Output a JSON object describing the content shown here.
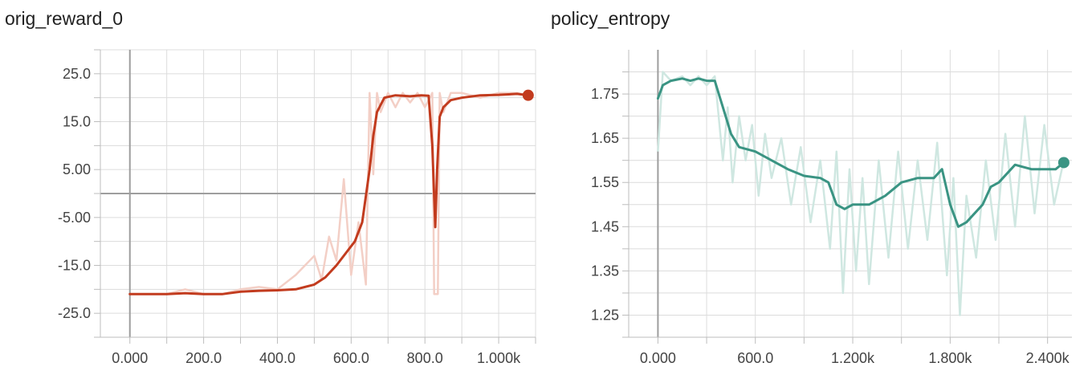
{
  "charts": [
    {
      "title": "orig_reward_0",
      "color": "#c23b1e",
      "raw_color": "#f3cfc6",
      "x_ticks": [
        "0.000",
        "200.0",
        "400.0",
        "600.0",
        "800.0",
        "1.000k"
      ],
      "y_ticks": [
        "25.0",
        "15.0",
        "5.00",
        "-5.00",
        "-15.0",
        "-25.0"
      ]
    },
    {
      "title": "policy_entropy",
      "color": "#3a9483",
      "raw_color": "#cfe7e1",
      "x_ticks": [
        "0.000",
        "600.0",
        "1.200k",
        "1.800k",
        "2.400k"
      ],
      "y_ticks": [
        "1.75",
        "1.65",
        "1.55",
        "1.45",
        "1.35",
        "1.25"
      ]
    }
  ],
  "chart_data": [
    {
      "type": "line",
      "title": "orig_reward_0",
      "xlabel": "",
      "ylabel": "",
      "xlim": [
        -80,
        1100
      ],
      "ylim": [
        -30,
        30
      ],
      "x_ticks": [
        0,
        200,
        400,
        600,
        800,
        1000
      ],
      "y_ticks": [
        25,
        15,
        5,
        -5,
        -15,
        -25
      ],
      "grid": true,
      "series": [
        {
          "smoothed": true,
          "x": [
            0,
            50,
            100,
            150,
            200,
            250,
            300,
            350,
            400,
            450,
            500,
            530,
            560,
            590,
            610,
            630,
            650,
            660,
            670,
            690,
            720,
            760,
            790,
            810,
            820,
            828,
            833,
            840,
            850,
            870,
            900,
            950,
            1000,
            1050,
            1080
          ],
          "y": [
            -21,
            -21,
            -21,
            -20.8,
            -21,
            -21,
            -20.5,
            -20.3,
            -20.2,
            -20,
            -19,
            -17.5,
            -15,
            -12,
            -10,
            -6,
            5,
            12,
            17,
            20,
            20.5,
            20.3,
            20.5,
            20.4,
            10,
            -7,
            5,
            16,
            18,
            19.5,
            20,
            20.5,
            20.6,
            20.8,
            20.5
          ]
        },
        {
          "raw": true,
          "x": [
            0,
            50,
            100,
            150,
            200,
            250,
            300,
            350,
            400,
            450,
            500,
            520,
            540,
            560,
            580,
            600,
            620,
            640,
            650,
            660,
            670,
            680,
            700,
            720,
            740,
            760,
            780,
            800,
            820,
            825,
            830,
            835,
            840,
            850,
            870,
            900,
            950,
            1000,
            1050,
            1080
          ],
          "y": [
            -21,
            -21,
            -21,
            -20,
            -21,
            -21,
            -20,
            -19.5,
            -20,
            -17,
            -13,
            -18,
            -9,
            -14,
            3,
            -17,
            -6,
            -19,
            21,
            4,
            21,
            17,
            21,
            18,
            21,
            19,
            21,
            18,
            21,
            -21,
            -21,
            -21,
            21,
            17,
            21,
            21,
            20,
            21,
            21,
            20.5
          ]
        }
      ]
    },
    {
      "type": "line",
      "title": "policy_entropy",
      "xlabel": "",
      "ylabel": "",
      "xlim": [
        -180,
        2550
      ],
      "ylim": [
        1.2,
        1.85
      ],
      "x_ticks": [
        0,
        600,
        1200,
        1800,
        2400
      ],
      "y_ticks": [
        1.75,
        1.65,
        1.55,
        1.45,
        1.35,
        1.25
      ],
      "grid": true,
      "series": [
        {
          "smoothed": true,
          "x": [
            0,
            30,
            80,
            150,
            200,
            250,
            300,
            350,
            400,
            450,
            500,
            550,
            600,
            700,
            800,
            900,
            1000,
            1050,
            1100,
            1150,
            1200,
            1300,
            1400,
            1500,
            1600,
            1700,
            1750,
            1800,
            1850,
            1900,
            1950,
            2000,
            2050,
            2100,
            2200,
            2300,
            2400,
            2450,
            2500
          ],
          "y": [
            1.74,
            1.77,
            1.78,
            1.785,
            1.78,
            1.785,
            1.78,
            1.78,
            1.72,
            1.66,
            1.63,
            1.625,
            1.62,
            1.6,
            1.58,
            1.565,
            1.56,
            1.55,
            1.5,
            1.49,
            1.5,
            1.5,
            1.52,
            1.55,
            1.56,
            1.56,
            1.58,
            1.5,
            1.45,
            1.46,
            1.48,
            1.5,
            1.54,
            1.55,
            1.59,
            1.58,
            1.58,
            1.58,
            1.595
          ]
        },
        {
          "raw": true,
          "x": [
            0,
            30,
            80,
            150,
            200,
            250,
            300,
            350,
            400,
            430,
            460,
            500,
            540,
            580,
            620,
            660,
            700,
            760,
            820,
            880,
            940,
            1000,
            1060,
            1100,
            1140,
            1180,
            1220,
            1260,
            1300,
            1360,
            1420,
            1480,
            1540,
            1600,
            1660,
            1720,
            1780,
            1820,
            1860,
            1900,
            1960,
            2020,
            2080,
            2140,
            2200,
            2260,
            2320,
            2380,
            2440,
            2500
          ],
          "y": [
            1.62,
            1.8,
            1.78,
            1.79,
            1.77,
            1.79,
            1.77,
            1.79,
            1.6,
            1.72,
            1.55,
            1.7,
            1.6,
            1.68,
            1.52,
            1.66,
            1.56,
            1.65,
            1.5,
            1.63,
            1.46,
            1.6,
            1.4,
            1.62,
            1.3,
            1.58,
            1.35,
            1.56,
            1.32,
            1.6,
            1.38,
            1.62,
            1.4,
            1.6,
            1.42,
            1.64,
            1.34,
            1.56,
            1.25,
            1.52,
            1.38,
            1.6,
            1.42,
            1.66,
            1.45,
            1.7,
            1.48,
            1.68,
            1.5,
            1.6
          ]
        }
      ]
    }
  ]
}
